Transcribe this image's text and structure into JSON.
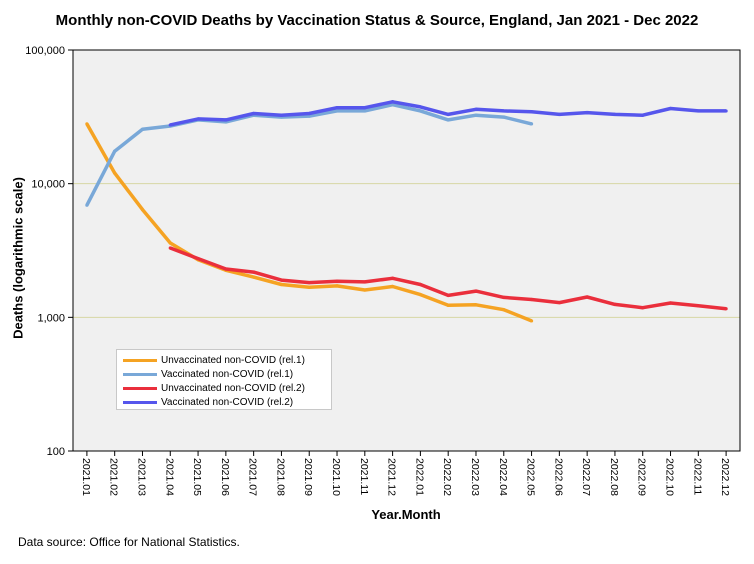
{
  "chart_data": {
    "type": "line",
    "title": "Monthly non-COVID Deaths by Vaccination Status & Source, England, Jan 2021 - Dec 2022",
    "xlabel": "Year.Month",
    "ylabel": "Deaths (logarithmic scale)",
    "yscale": "log",
    "ylim": [
      100,
      100000
    ],
    "yticks": [
      100,
      1000,
      10000,
      100000
    ],
    "ytick_labels": [
      "100",
      "1,000",
      "10,000",
      "100,000"
    ],
    "gridlines_y": [
      1000,
      10000
    ],
    "legend_position": "lower-left",
    "categories": [
      "2021.01",
      "2021.02",
      "2021.03",
      "2021.04",
      "2021.05",
      "2021.06",
      "2021.07",
      "2021.08",
      "2021.09",
      "2021.10",
      "2021.11",
      "2021.12",
      "2022.01",
      "2022.02",
      "2022.03",
      "2022.04",
      "2022.05",
      "2022.06",
      "2022.07",
      "2022.08",
      "2022.09",
      "2022.10",
      "2022.11",
      "2022.12"
    ],
    "series": [
      {
        "name": "Unvaccinated non-COVID (rel.1)",
        "color": "#f5a323",
        "values": [
          28000,
          12000,
          6400,
          3600,
          2700,
          2250,
          2000,
          1760,
          1680,
          1720,
          1600,
          1700,
          1480,
          1230,
          1240,
          1140,
          940,
          null,
          null,
          null,
          null,
          null,
          null,
          null
        ]
      },
      {
        "name": "Vaccinated non-COVID (rel.1)",
        "color": "#79a8d8",
        "values": [
          6900,
          17500,
          25500,
          27000,
          30000,
          29000,
          32500,
          31500,
          32000,
          35000,
          35000,
          39000,
          35000,
          30000,
          32500,
          31500,
          28000,
          null,
          null,
          null,
          null,
          null,
          null,
          null
        ]
      },
      {
        "name": "Unvaccinated non-COVID (rel.2)",
        "color": "#ea2f3c",
        "values": [
          null,
          null,
          null,
          3300,
          2750,
          2300,
          2180,
          1900,
          1820,
          1860,
          1840,
          1960,
          1760,
          1460,
          1570,
          1410,
          1360,
          1290,
          1420,
          1250,
          1180,
          1280,
          1220,
          1160
        ]
      },
      {
        "name": "Vaccinated non-COVID (rel.2)",
        "color": "#5656ec",
        "values": [
          null,
          null,
          null,
          27500,
          30500,
          30000,
          33500,
          32500,
          33500,
          37000,
          37000,
          41000,
          37500,
          33000,
          36000,
          35000,
          34500,
          33000,
          34000,
          33000,
          32500,
          36500,
          35000,
          35000
        ]
      }
    ]
  },
  "source_note": "Data source: Office for National Statistics."
}
